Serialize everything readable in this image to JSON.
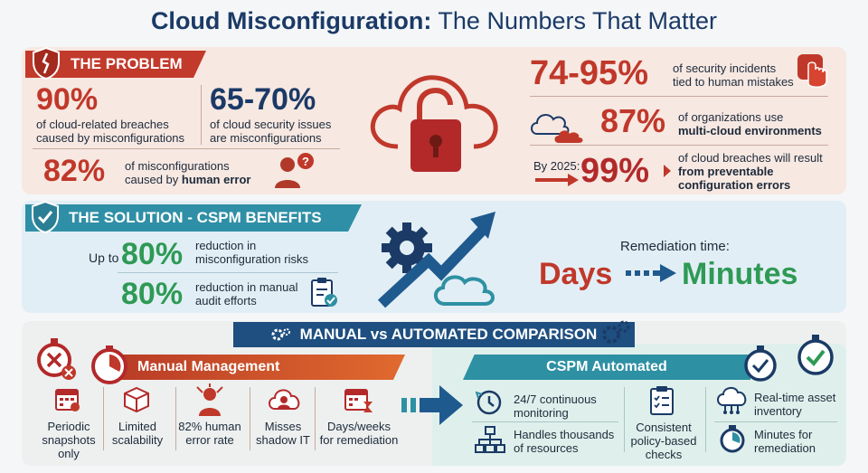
{
  "title": {
    "bold": "Cloud Misconfiguration:",
    "rest": " The Numbers That Matter"
  },
  "problem": {
    "heading": "THE PROBLEM",
    "stat1": {
      "value": "90%",
      "line1": "of cloud-related breaches",
      "line2": "caused by misconfigurations"
    },
    "stat2": {
      "value": "65-70%",
      "line1": "of cloud security issues",
      "line2": "are misconfigurations"
    },
    "stat3": {
      "value": "82%",
      "line1": "of misconfigurations",
      "line2_pre": "caused by ",
      "line2_bold": "human error"
    },
    "stat4": {
      "value": "74-95%",
      "line1": "of security incidents",
      "line2": "tied to human mistakes"
    },
    "stat5": {
      "value": "87%",
      "line1": "of organizations use",
      "line2": "multi-cloud environments"
    },
    "stat6": {
      "prefix": "By 2025:",
      "value": "99%",
      "line1": "of cloud breaches will result",
      "line2": "from preventable",
      "line3": "configuration errors"
    }
  },
  "solution": {
    "heading": "THE SOLUTION - CSPM BENEFITS",
    "stat1": {
      "prefix": "Up to",
      "value": "80%",
      "line1": "reduction in",
      "line2": "misconfiguration risks"
    },
    "stat2": {
      "value": "80%",
      "line1": "reduction in manual",
      "line2": "audit efforts"
    },
    "remediation": {
      "label": "Remediation time:",
      "from": "Days",
      "to": "Minutes"
    }
  },
  "comparison": {
    "heading": "MANUAL vs AUTOMATED COMPARISON",
    "manual": {
      "heading": "Manual Management",
      "items": [
        {
          "line1": "Periodic",
          "line2": "snapshots",
          "line3": "only"
        },
        {
          "line1": "Limited",
          "line2": "scalability",
          "line3": ""
        },
        {
          "line1": "82% human",
          "line2": "error rate",
          "line3": ""
        },
        {
          "line1": "Misses",
          "line2": "shadow IT",
          "line3": ""
        },
        {
          "line1": "Days/weeks",
          "line2": "for remediation",
          "line3": ""
        }
      ]
    },
    "automated": {
      "heading": "CSPM Automated",
      "items": [
        {
          "line1": "24/7 continuous",
          "line2": "monitoring",
          "line3": ""
        },
        {
          "line1": "Handles thousands",
          "line2": "of resources",
          "line3": ""
        },
        {
          "line1": "Consistent",
          "line2": "policy-based",
          "line3": "checks"
        },
        {
          "line1": "Real-time asset",
          "line2": "inventory",
          "line3": ""
        },
        {
          "line1": "Minutes for",
          "line2": "remediation",
          "line3": ""
        }
      ]
    }
  },
  "colors": {
    "red": "#c0382a",
    "navy": "#1b3a66",
    "green": "#2e9a55",
    "teal": "#2e90a3"
  },
  "icons": [
    "shield-crack-icon",
    "cloud-lock-icon",
    "user-question-icon",
    "hand-pointer-icon",
    "clouds-icon",
    "arrow-right-icon",
    "shield-check-icon",
    "gear-arrow-cloud-icon",
    "checklist-icon",
    "dashed-arrow-icon",
    "gears-icon",
    "stopwatch-x-icon",
    "stopwatch-icon",
    "calendar-icon",
    "box-icon",
    "stressed-person-icon",
    "cloud-person-icon",
    "calendar-hourglass-icon",
    "big-arrow-icon",
    "clock-icon",
    "hierarchy-icon",
    "clipboard-check-icon",
    "cloud-network-icon",
    "stopwatch-check-icon"
  ]
}
